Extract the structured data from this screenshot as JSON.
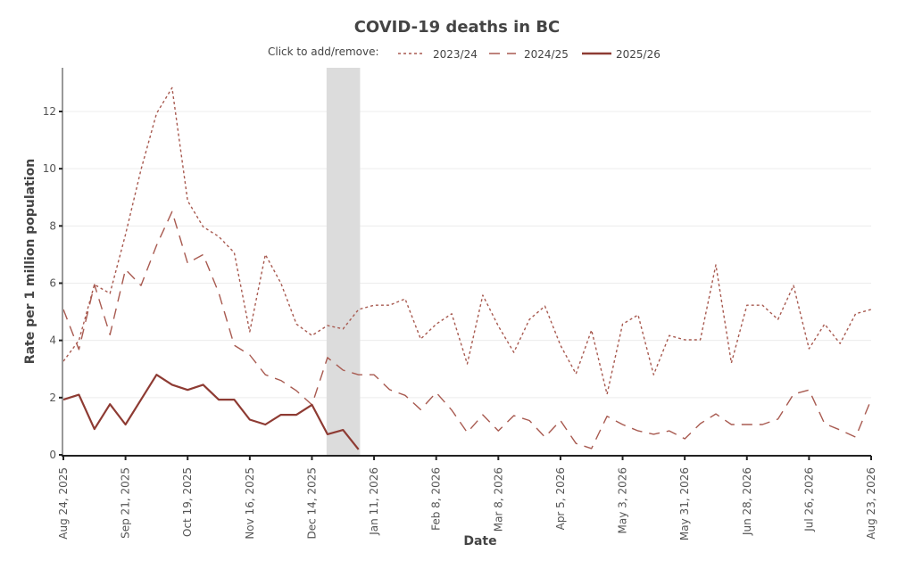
{
  "chart_data": {
    "type": "line",
    "title": "COVID-19 deaths in BC",
    "legend_prompt": "Click to add/remove:",
    "legend_position": "top-center",
    "xlabel": "Date",
    "ylabel": "Rate per 1 million population",
    "ylim": [
      0,
      13.5
    ],
    "yticks": [
      0,
      2,
      4,
      6,
      8,
      10,
      12
    ],
    "grid": true,
    "x_week_count": 53,
    "xtick_labels": [
      "Aug 24, 2025",
      "Sep 21, 2025",
      "Oct 19, 2025",
      "Nov 16, 2025",
      "Dec 14, 2025",
      "Jan 11, 2026",
      "Feb 8, 2026",
      "Mar 8, 2026",
      "Apr 5, 2026",
      "May 3, 2026",
      "May 31, 2026",
      "Jun 28, 2026",
      "Jul 26, 2026",
      "Aug 23, 2026"
    ],
    "xtick_week_index": [
      0,
      4,
      8,
      12,
      16,
      20,
      24,
      28,
      32,
      36,
      40,
      44,
      48,
      52
    ],
    "shaded_region_weeks": [
      17,
      19.1
    ],
    "shaded_color": "#dcdcdc",
    "series": [
      {
        "name": "2023/24",
        "style": "dotted",
        "color": "#a85a50",
        "values": [
          3.27,
          4.0,
          5.95,
          5.64,
          7.7,
          9.97,
          11.93,
          12.83,
          8.88,
          7.97,
          7.63,
          7.07,
          4.3,
          7.0,
          6.0,
          4.57,
          4.17,
          4.52,
          4.4,
          5.08,
          5.23,
          5.23,
          5.45,
          4.05,
          4.57,
          4.93,
          3.18,
          5.58,
          4.5,
          3.58,
          4.73,
          5.2,
          3.83,
          2.83,
          4.36,
          2.12,
          4.57,
          4.89,
          2.8,
          4.17,
          4.02,
          4.02,
          6.64,
          3.21,
          5.23,
          5.23,
          4.73,
          5.92,
          3.71,
          4.57,
          3.89,
          4.93,
          5.08
        ]
      },
      {
        "name": "2024/25",
        "style": "dashed",
        "color": "#a85a50",
        "values": [
          5.08,
          3.68,
          5.95,
          4.2,
          6.48,
          5.92,
          7.32,
          8.5,
          6.7,
          7.0,
          5.67,
          3.83,
          3.49,
          2.8,
          2.6,
          2.24,
          1.75,
          3.4,
          2.96,
          2.8,
          2.8,
          2.28,
          2.08,
          1.58,
          2.18,
          1.56,
          0.78,
          1.4,
          0.84,
          1.37,
          1.2,
          0.62,
          1.2,
          0.4,
          0.22,
          1.35,
          1.06,
          0.84,
          0.72,
          0.84,
          0.56,
          1.09,
          1.43,
          1.06,
          1.06,
          1.06,
          1.25,
          2.12,
          2.27,
          1.09,
          0.87,
          0.62,
          1.93
        ]
      },
      {
        "name": "2025/26",
        "style": "solid",
        "color": "#8e3b33",
        "values": [
          1.93,
          2.1,
          0.9,
          1.77,
          1.06,
          1.93,
          2.8,
          2.45,
          2.27,
          2.45,
          1.93,
          1.93,
          1.23,
          1.06,
          1.4,
          1.4,
          1.75,
          0.72,
          0.87,
          0.19
        ]
      }
    ]
  }
}
